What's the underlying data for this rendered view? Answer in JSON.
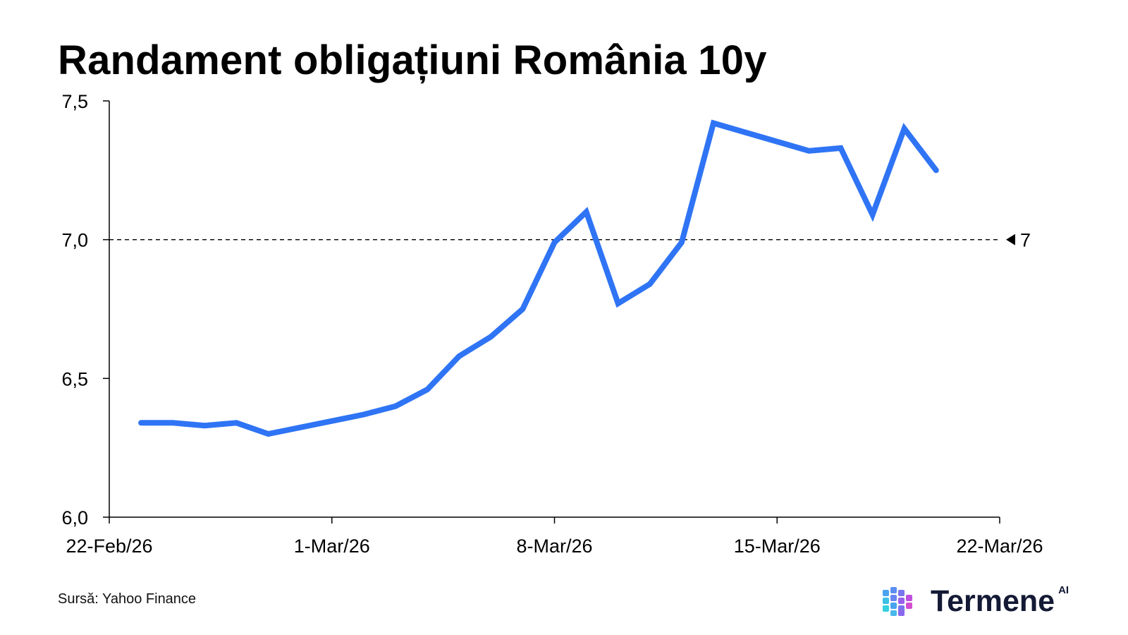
{
  "chart_data": {
    "type": "line",
    "title": "Randament obligațiuni România 10y",
    "xlabel": "",
    "ylabel": "",
    "x_range": [
      "22-Feb/26",
      "22-Mar/26"
    ],
    "ylim": [
      6.0,
      7.5
    ],
    "y_ticks": [
      "6,0",
      "6,5",
      "7,0",
      "7,5"
    ],
    "y_tick_values": [
      6.0,
      6.5,
      7.0,
      7.5
    ],
    "x_ticks": [
      "22-Feb/26",
      "1-Mar/26",
      "8-Mar/26",
      "15-Mar/26",
      "22-Mar/26"
    ],
    "x_tick_dates": [
      "2026-02-22",
      "2026-03-01",
      "2026-03-08",
      "2026-03-15",
      "2026-03-22"
    ],
    "grid": false,
    "series": [
      {
        "color": "#2f74f5",
        "points": [
          {
            "date": "2026-02-23",
            "value": 6.34
          },
          {
            "date": "2026-02-24",
            "value": 6.34
          },
          {
            "date": "2026-02-25",
            "value": 6.33
          },
          {
            "date": "2026-02-26",
            "value": 6.34
          },
          {
            "date": "2026-02-27",
            "value": 6.3
          },
          {
            "date": "2026-03-02",
            "value": 6.37
          },
          {
            "date": "2026-03-03",
            "value": 6.4
          },
          {
            "date": "2026-03-04",
            "value": 6.46
          },
          {
            "date": "2026-03-05",
            "value": 6.58
          },
          {
            "date": "2026-03-06",
            "value": 6.65
          },
          {
            "date": "2026-03-07",
            "value": 6.75
          },
          {
            "date": "2026-03-08",
            "value": 6.99
          },
          {
            "date": "2026-03-09",
            "value": 7.1
          },
          {
            "date": "2026-03-10",
            "value": 6.77
          },
          {
            "date": "2026-03-11",
            "value": 6.84
          },
          {
            "date": "2026-03-12",
            "value": 6.99
          },
          {
            "date": "2026-03-13",
            "value": 7.42
          },
          {
            "date": "2026-03-16",
            "value": 7.32
          },
          {
            "date": "2026-03-17",
            "value": 7.33
          },
          {
            "date": "2026-03-18",
            "value": 7.09
          },
          {
            "date": "2026-03-19",
            "value": 7.4
          },
          {
            "date": "2026-03-20",
            "value": 7.25
          }
        ]
      }
    ],
    "reference_line": {
      "value": 7.0,
      "label": "7",
      "style": "dashed",
      "color": "#000000"
    }
  },
  "footer": {
    "source": "Sursă: Yahoo Finance",
    "brand": "Termene",
    "brand_sup": "AI"
  },
  "colors": {
    "line": "#2f74f5",
    "axis": "#000000",
    "brand_text": "#141a35"
  },
  "icons": {
    "brand_logo": "cube-grid-logo-icon"
  }
}
